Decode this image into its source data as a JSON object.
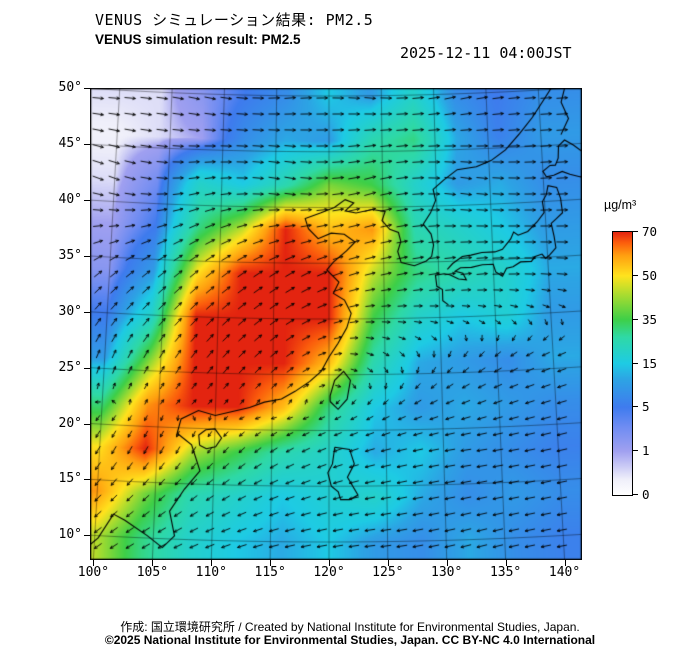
{
  "header": {
    "title_jp": "VENUS シミュレーション結果: PM2.5",
    "title_en": "VENUS simulation result: PM2.5",
    "timestamp": "2025-12-11 04:00JST"
  },
  "axes": {
    "lat_ticks": [
      "50°",
      "45°",
      "40°",
      "35°",
      "30°",
      "25°",
      "20°",
      "15°",
      "10°"
    ],
    "lon_ticks": [
      "100°",
      "105°",
      "110°",
      "115°",
      "120°",
      "125°",
      "130°",
      "135°",
      "140°"
    ]
  },
  "colorbar": {
    "unit": "µg/m³",
    "tick_labels": [
      "70",
      "50",
      "35",
      "15",
      "5",
      "1",
      "0"
    ],
    "stops": [
      [
        0,
        "#ffffff"
      ],
      [
        0.06,
        "#efeffa"
      ],
      [
        0.167,
        "#a0a0f0"
      ],
      [
        0.26,
        "#6e8cf2"
      ],
      [
        0.333,
        "#3f7bee"
      ],
      [
        0.44,
        "#2da4e4"
      ],
      [
        0.5,
        "#1ecbe4"
      ],
      [
        0.6,
        "#2fd9a6"
      ],
      [
        0.667,
        "#3ecf48"
      ],
      [
        0.76,
        "#a8dc30"
      ],
      [
        0.833,
        "#ffe31e"
      ],
      [
        0.91,
        "#ffa010"
      ],
      [
        0.96,
        "#fb5c0c"
      ],
      [
        1,
        "#e32410"
      ]
    ]
  },
  "chart_data": {
    "type": "heatmap",
    "title": "VENUS simulation result: PM2.5",
    "unit": "µg/m³",
    "valid_time": "2025-12-11 04:00JST",
    "lon_range": [
      100,
      140
    ],
    "lat_range": [
      10,
      50
    ],
    "colormap_breakpoints": [
      0,
      1,
      5,
      15,
      35,
      50,
      70
    ],
    "grid_lons": [
      100,
      104,
      108,
      112,
      116,
      120,
      124,
      128,
      132,
      136,
      140
    ],
    "grid_lats": [
      50,
      46,
      42,
      38,
      34,
      30,
      26,
      22,
      18,
      14,
      10
    ],
    "values": [
      [
        0.5,
        0.5,
        2,
        5,
        8,
        15,
        10,
        20,
        8,
        5,
        8
      ],
      [
        0.3,
        0.5,
        1,
        8,
        12,
        10,
        25,
        30,
        12,
        6,
        10
      ],
      [
        0.5,
        3,
        20,
        15,
        25,
        40,
        35,
        20,
        10,
        12,
        8
      ],
      [
        1,
        5,
        30,
        45,
        70,
        55,
        60,
        25,
        20,
        15,
        10
      ],
      [
        2,
        10,
        50,
        70,
        70,
        70,
        45,
        30,
        25,
        20,
        12
      ],
      [
        5,
        20,
        70,
        70,
        70,
        70,
        35,
        20,
        15,
        18,
        10
      ],
      [
        10,
        40,
        70,
        70,
        70,
        55,
        25,
        12,
        10,
        8,
        12
      ],
      [
        30,
        60,
        70,
        70,
        55,
        30,
        15,
        10,
        12,
        10,
        8
      ],
      [
        50,
        70,
        45,
        35,
        25,
        20,
        12,
        15,
        10,
        8,
        6
      ],
      [
        60,
        40,
        25,
        20,
        15,
        18,
        20,
        12,
        8,
        10,
        8
      ],
      [
        45,
        30,
        20,
        15,
        12,
        15,
        10,
        8,
        12,
        8,
        6
      ]
    ],
    "wind": {
      "lons": [
        100,
        108,
        116,
        124,
        132,
        140
      ],
      "lats": [
        50,
        42,
        34,
        26,
        18,
        10
      ],
      "uv": [
        [
          [
            1,
            0
          ],
          [
            1,
            -0.2
          ],
          [
            1,
            0.1
          ],
          [
            1,
            -0.1
          ],
          [
            1,
            0.2
          ],
          [
            1,
            0
          ]
        ],
        [
          [
            1,
            -0.3
          ],
          [
            0.9,
            0.2
          ],
          [
            1,
            -0.2
          ],
          [
            1.1,
            0.3
          ],
          [
            1,
            -0.2
          ],
          [
            1,
            0
          ]
        ],
        [
          [
            0.6,
            0.5
          ],
          [
            0.7,
            0.6
          ],
          [
            0.8,
            0.5
          ],
          [
            0.9,
            0.2
          ],
          [
            1,
            0.1
          ],
          [
            1,
            -0.1
          ]
        ],
        [
          [
            0.2,
            0.6
          ],
          [
            0.4,
            0.6
          ],
          [
            0.5,
            0.4
          ],
          [
            0.3,
            -0.2
          ],
          [
            -0.3,
            -0.3
          ],
          [
            -0.6,
            -0.2
          ]
        ],
        [
          [
            -0.3,
            -0.6
          ],
          [
            -0.2,
            -0.4
          ],
          [
            -0.5,
            -0.3
          ],
          [
            -0.8,
            -0.2
          ],
          [
            -0.9,
            -0.1
          ],
          [
            -0.9,
            -0.15
          ]
        ],
        [
          [
            -0.5,
            -0.4
          ],
          [
            -0.6,
            -0.3
          ],
          [
            -0.8,
            -0.2
          ],
          [
            -0.9,
            -0.1
          ],
          [
            -0.9,
            -0.2
          ],
          [
            -0.8,
            -0.1
          ]
        ]
      ]
    }
  },
  "map_features": {
    "coastlines": [
      [
        [
          99,
          8.5
        ],
        [
          100.3,
          9.8
        ],
        [
          101.5,
          12
        ],
        [
          102.5,
          11.5
        ],
        [
          104.5,
          10.2
        ],
        [
          105.8,
          9.2
        ],
        [
          106.8,
          10.3
        ],
        [
          106.3,
          12.5
        ],
        [
          107.5,
          14.5
        ],
        [
          108.8,
          16.2
        ],
        [
          108,
          18.5
        ],
        [
          106.7,
          19.5
        ],
        [
          107,
          20.8
        ],
        [
          108.5,
          21.6
        ],
        [
          110,
          21.2
        ],
        [
          111.5,
          21.6
        ],
        [
          113,
          22
        ],
        [
          114.3,
          22.5
        ],
        [
          115.8,
          22.8
        ],
        [
          117,
          23.5
        ],
        [
          118.3,
          24.4
        ],
        [
          119.3,
          25.3
        ],
        [
          120,
          26.6
        ],
        [
          120.8,
          27.8
        ],
        [
          121.6,
          29.2
        ],
        [
          122,
          30.5
        ],
        [
          121.4,
          31.7
        ],
        [
          120.4,
          32.3
        ],
        [
          120.9,
          33.3
        ],
        [
          119.8,
          34.4
        ],
        [
          120.4,
          35.1
        ],
        [
          121.6,
          36.1
        ],
        [
          122.4,
          36.9
        ],
        [
          121.4,
          37.6
        ],
        [
          120.2,
          37.7
        ],
        [
          119,
          37.2
        ],
        [
          118.1,
          38.1
        ],
        [
          117.8,
          39
        ],
        [
          119.2,
          39.5
        ],
        [
          120.5,
          40
        ],
        [
          121.5,
          40.7
        ],
        [
          122.3,
          40.4
        ],
        [
          121.5,
          39.7
        ],
        [
          122.5,
          39.5
        ],
        [
          124,
          39.8
        ],
        [
          125.2,
          39.6
        ],
        [
          124.9,
          38.8
        ],
        [
          125.6,
          38
        ],
        [
          126.4,
          37.7
        ],
        [
          126.6,
          36.9
        ],
        [
          126.3,
          36
        ],
        [
          126.6,
          35
        ],
        [
          127.8,
          34.7
        ],
        [
          128.9,
          35.1
        ],
        [
          129.4,
          35.5
        ],
        [
          129.6,
          36.5
        ],
        [
          129.4,
          37.5
        ],
        [
          128.7,
          38.4
        ],
        [
          129.4,
          39.4
        ],
        [
          129.9,
          40.5
        ],
        [
          129.7,
          41.5
        ],
        [
          130.7,
          42.3
        ],
        [
          132,
          43.2
        ],
        [
          133.8,
          43.4
        ],
        [
          135.2,
          43.9
        ],
        [
          136.6,
          44.8
        ],
        [
          138,
          46.2
        ],
        [
          139.3,
          47.6
        ],
        [
          140.3,
          48.9
        ],
        [
          141.3,
          50.2
        ],
        [
          142,
          51.5
        ]
      ],
      [
        [
          130.8,
          31.1
        ],
        [
          130.3,
          31.5
        ],
        [
          130.3,
          32.5
        ],
        [
          129.8,
          32.8
        ],
        [
          129.7,
          33.8
        ],
        [
          130.5,
          33.9
        ],
        [
          131,
          33.8
        ],
        [
          131.8,
          33.4
        ],
        [
          132.5,
          33.3
        ],
        [
          132.2,
          33.9
        ],
        [
          131.5,
          34.1
        ],
        [
          132,
          34.4
        ],
        [
          133,
          34.4
        ],
        [
          134,
          34.6
        ],
        [
          135,
          34.6
        ],
        [
          135.2,
          33.9
        ],
        [
          135.8,
          33.5
        ],
        [
          136.2,
          34.2
        ],
        [
          136.8,
          34.3
        ],
        [
          137.5,
          34.7
        ],
        [
          138.5,
          34.7
        ],
        [
          138.8,
          35.1
        ],
        [
          139.5,
          35.3
        ],
        [
          139.8,
          34.9
        ],
        [
          140.2,
          35.2
        ],
        [
          140.8,
          35.8
        ],
        [
          140.7,
          36.8
        ],
        [
          140.5,
          38
        ],
        [
          141,
          38.4
        ],
        [
          141.6,
          38.9
        ],
        [
          141.5,
          40.2
        ],
        [
          141.2,
          41.2
        ],
        [
          140.4,
          41.4
        ],
        [
          140.2,
          40.6
        ],
        [
          139.8,
          40
        ],
        [
          139.9,
          39
        ],
        [
          139.2,
          38.2
        ],
        [
          138.3,
          37.4
        ],
        [
          137.4,
          37.1
        ],
        [
          137,
          37.4
        ],
        [
          136.7,
          36.8
        ],
        [
          135.9,
          35.9
        ],
        [
          135.2,
          35.7
        ],
        [
          134,
          35.7
        ],
        [
          133,
          35.5
        ],
        [
          132.2,
          35.4
        ],
        [
          131.3,
          34.8
        ],
        [
          130.8,
          34.3
        ]
      ],
      [
        [
          140.3,
          42.2
        ],
        [
          140,
          42.7
        ],
        [
          140.7,
          43.2
        ],
        [
          141.2,
          43.2
        ],
        [
          141.5,
          43.8
        ],
        [
          141.6,
          44.9
        ],
        [
          142.2,
          45.4
        ],
        [
          143,
          44.9
        ],
        [
          144,
          44.1
        ],
        [
          145,
          44.2
        ],
        [
          145.5,
          43.3
        ],
        [
          144.5,
          42.9
        ],
        [
          143.5,
          42
        ],
        [
          142.5,
          42.3
        ],
        [
          141.8,
          42.6
        ],
        [
          141,
          42.3
        ],
        [
          140.3,
          42.2
        ]
      ],
      [
        [
          120.1,
          22.6
        ],
        [
          120.8,
          21.9
        ],
        [
          121.6,
          22.8
        ],
        [
          121.9,
          24.5
        ],
        [
          121.3,
          25.3
        ],
        [
          120.5,
          24.5
        ],
        [
          120.1,
          23.1
        ],
        [
          120.1,
          22.6
        ]
      ],
      [
        [
          108.7,
          18.5
        ],
        [
          109.3,
          18.2
        ],
        [
          110.1,
          18.4
        ],
        [
          110.6,
          19.2
        ],
        [
          110,
          20
        ],
        [
          109.2,
          19.9
        ],
        [
          108.6,
          19.4
        ],
        [
          108.7,
          18.5
        ]
      ],
      [
        [
          120.5,
          18.5
        ],
        [
          121.8,
          18.3
        ],
        [
          122.2,
          17
        ],
        [
          121.6,
          15.8
        ],
        [
          122.5,
          14.2
        ],
        [
          121.8,
          13.8
        ],
        [
          121,
          13.8
        ],
        [
          120.8,
          14.5
        ],
        [
          120.2,
          15
        ],
        [
          119.9,
          16.2
        ],
        [
          120.3,
          17
        ],
        [
          120.5,
          18.5
        ]
      ],
      [
        [
          141.9,
          45.9
        ],
        [
          142.7,
          47.3
        ],
        [
          142.1,
          48.8
        ],
        [
          142.6,
          50.3
        ],
        [
          142.3,
          51.6
        ]
      ]
    ]
  },
  "footer": {
    "credit": "作成: 国立環境研究所 / Created by National Institute for Environmental Studies, Japan.",
    "copyright": "©2025 National Institute for Environmental Studies, Japan. CC BY-NC 4.0 International"
  }
}
